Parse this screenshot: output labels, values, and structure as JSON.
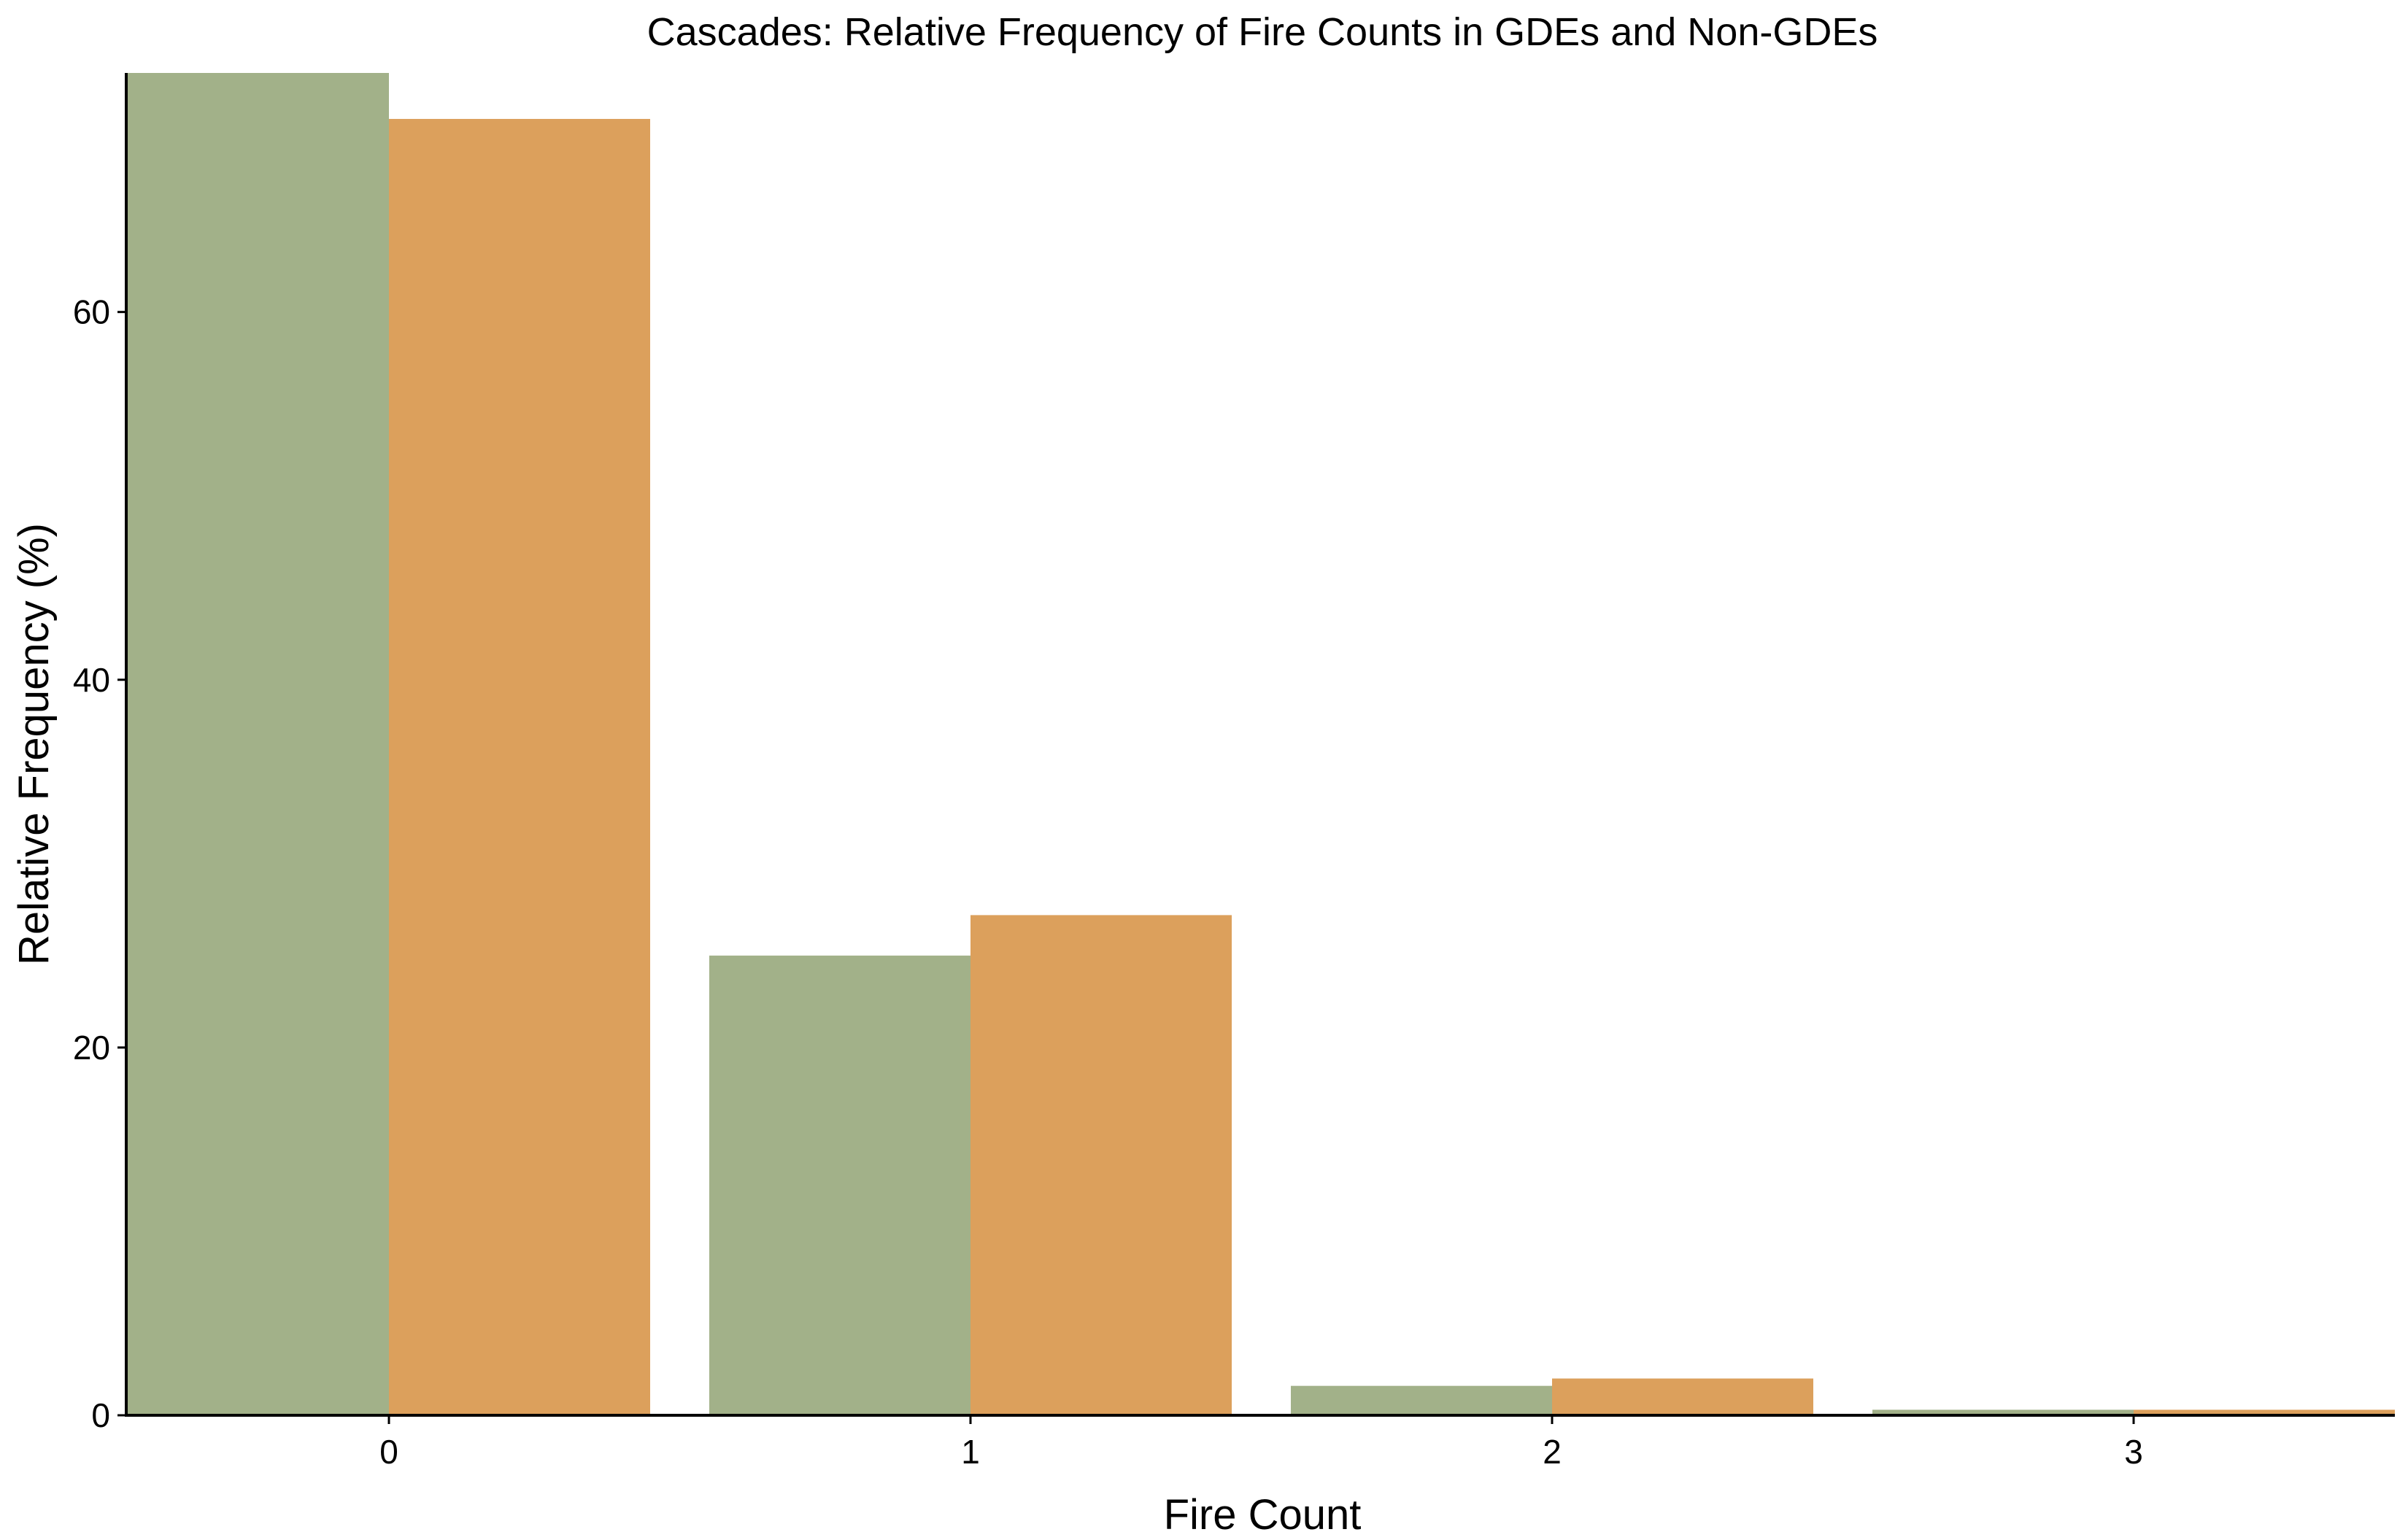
{
  "chart_data": {
    "type": "bar",
    "title": "Cascades: Relative Frequency of Fire Counts in GDEs and Non-GDEs",
    "xlabel": "Fire Count",
    "ylabel": "Relative Frequency (%)",
    "categories": [
      "0",
      "1",
      "2",
      "3"
    ],
    "series": [
      {
        "values": [
          73.0,
          25.0,
          1.6,
          0.3
        ],
        "color": "#a2b189"
      },
      {
        "values": [
          70.5,
          27.2,
          2.0,
          0.3
        ],
        "color": "#dca05c"
      }
    ],
    "yticks": [
      0,
      20,
      40,
      60
    ],
    "ylim": [
      0,
      73
    ],
    "grid": false,
    "legend": "none"
  }
}
